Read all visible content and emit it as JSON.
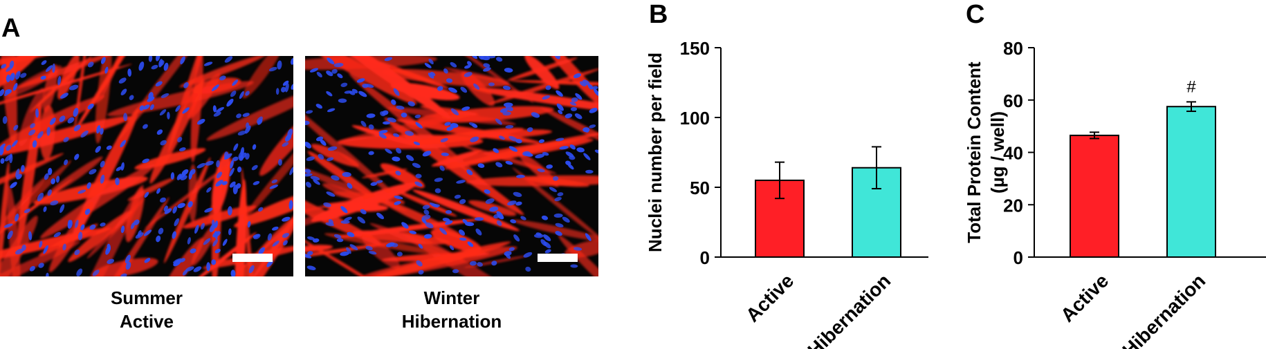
{
  "panels": {
    "a": {
      "letter": "A",
      "images": [
        {
          "caption_line1": "Summer",
          "caption_line2": "Active"
        },
        {
          "caption_line1": "Winter",
          "caption_line2": "Hibernation"
        }
      ]
    },
    "b": {
      "letter": "B"
    },
    "c": {
      "letter": "C"
    }
  },
  "colors": {
    "active": "#ff1f26",
    "hibernation": "#40e6d8",
    "fiber_stain": "#ff2a1a",
    "nuclei_stain": "#2c4cf0"
  },
  "chart_data": [
    {
      "type": "bar",
      "panel": "B",
      "categories": [
        "Active",
        "Hibernation"
      ],
      "values": [
        55,
        64
      ],
      "errors": [
        13,
        15
      ],
      "ylabel": "Nuclei number per field",
      "ylim": [
        0,
        150
      ],
      "yticks": [
        0,
        50,
        100,
        150
      ],
      "annotations": [
        "",
        ""
      ]
    },
    {
      "type": "bar",
      "panel": "C",
      "categories": [
        "Active",
        "Hibernation"
      ],
      "values": [
        46.5,
        57.5
      ],
      "errors": [
        1.2,
        1.8
      ],
      "ylabel": "Total Protein Content",
      "ylabel2": "(µg / well)",
      "ylim": [
        0,
        80
      ],
      "yticks": [
        0,
        20,
        40,
        60,
        80
      ],
      "annotations": [
        "",
        "#"
      ]
    }
  ]
}
